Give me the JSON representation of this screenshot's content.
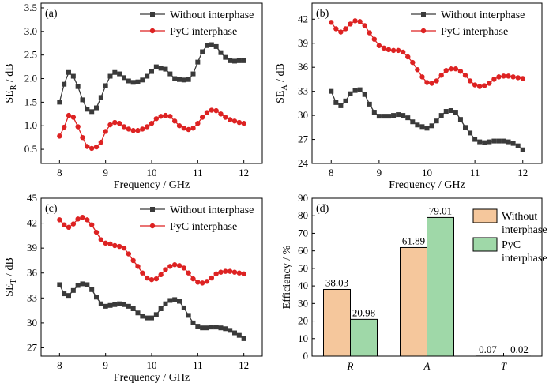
{
  "colors": {
    "without": "#3a3a3a",
    "pyc": "#dd2222",
    "bar_without": "#f5c79c",
    "bar_pyc": "#9fd8a8"
  },
  "chart_data": [
    {
      "panel": "(a)",
      "type": "line",
      "xlabel": "Frequency / GHz",
      "ylabel": "SE",
      "ylabel_sub": "R",
      "ylabel_unit": " / dB",
      "xlim": [
        7.6,
        12.4
      ],
      "ylim": [
        0.2,
        3.6
      ],
      "xticks": [
        8,
        9,
        10,
        11,
        12
      ],
      "yticks": [
        0.5,
        1.0,
        1.5,
        2.0,
        2.5,
        3.0,
        3.5
      ],
      "ytick_decimals": 1,
      "legend_position": "top-right",
      "x": [
        8.0,
        8.1,
        8.2,
        8.3,
        8.4,
        8.5,
        8.6,
        8.7,
        8.8,
        8.9,
        9.0,
        9.1,
        9.2,
        9.3,
        9.4,
        9.5,
        9.6,
        9.7,
        9.8,
        9.9,
        10.0,
        10.1,
        10.2,
        10.3,
        10.4,
        10.5,
        10.6,
        10.7,
        10.8,
        10.9,
        11.0,
        11.1,
        11.2,
        11.3,
        11.4,
        11.5,
        11.6,
        11.7,
        11.8,
        11.9,
        12.0
      ],
      "series": [
        {
          "name": "Without interphase",
          "marker": "square",
          "color_key": "without",
          "values": [
            1.5,
            1.88,
            2.13,
            2.05,
            1.83,
            1.55,
            1.35,
            1.3,
            1.38,
            1.6,
            1.85,
            2.05,
            2.13,
            2.1,
            2.02,
            1.95,
            1.92,
            1.93,
            1.97,
            2.05,
            2.15,
            2.25,
            2.22,
            2.2,
            2.1,
            2.0,
            1.98,
            1.97,
            1.98,
            2.1,
            2.35,
            2.57,
            2.7,
            2.72,
            2.68,
            2.55,
            2.45,
            2.38,
            2.37,
            2.38,
            2.38
          ]
        },
        {
          "name": "PyC interphase",
          "marker": "circle",
          "color_key": "pyc",
          "values": [
            0.78,
            0.97,
            1.22,
            1.18,
            0.98,
            0.75,
            0.56,
            0.52,
            0.55,
            0.65,
            0.88,
            1.02,
            1.07,
            1.05,
            0.98,
            0.93,
            0.9,
            0.9,
            0.93,
            0.98,
            1.05,
            1.15,
            1.2,
            1.22,
            1.2,
            1.1,
            1.0,
            0.95,
            0.92,
            0.95,
            1.05,
            1.18,
            1.28,
            1.33,
            1.32,
            1.25,
            1.18,
            1.13,
            1.1,
            1.07,
            1.05
          ]
        }
      ]
    },
    {
      "panel": "(b)",
      "type": "line",
      "xlabel": "Frequency / GHz",
      "ylabel": "SE",
      "ylabel_sub": "A",
      "ylabel_unit": " / dB",
      "xlim": [
        7.6,
        12.4
      ],
      "ylim": [
        24,
        44
      ],
      "xticks": [
        8,
        9,
        10,
        11,
        12
      ],
      "yticks": [
        24,
        27,
        30,
        33,
        36,
        39,
        42
      ],
      "ytick_decimals": 0,
      "legend_position": "top-right",
      "x": [
        8.0,
        8.1,
        8.2,
        8.3,
        8.4,
        8.5,
        8.6,
        8.7,
        8.8,
        8.9,
        9.0,
        9.1,
        9.2,
        9.3,
        9.4,
        9.5,
        9.6,
        9.7,
        9.8,
        9.9,
        10.0,
        10.1,
        10.2,
        10.3,
        10.4,
        10.5,
        10.6,
        10.7,
        10.8,
        10.9,
        11.0,
        11.1,
        11.2,
        11.3,
        11.4,
        11.5,
        11.6,
        11.7,
        11.8,
        11.9,
        12.0
      ],
      "series": [
        {
          "name": "Without interphase",
          "marker": "square",
          "color_key": "without",
          "values": [
            33.0,
            31.6,
            31.2,
            31.8,
            32.7,
            33.1,
            33.2,
            32.6,
            31.4,
            30.4,
            29.9,
            29.9,
            29.9,
            30.0,
            30.1,
            30.0,
            29.7,
            29.2,
            28.8,
            28.6,
            28.4,
            28.7,
            29.3,
            30.0,
            30.5,
            30.6,
            30.4,
            29.5,
            28.5,
            27.8,
            27.0,
            26.7,
            26.6,
            26.7,
            26.8,
            26.8,
            26.8,
            26.7,
            26.5,
            26.2,
            25.7
          ]
        },
        {
          "name": "PyC interphase",
          "marker": "circle",
          "color_key": "pyc",
          "values": [
            41.6,
            40.8,
            40.4,
            40.8,
            41.4,
            41.8,
            41.7,
            41.2,
            40.3,
            39.5,
            38.7,
            38.4,
            38.2,
            38.1,
            38.1,
            37.9,
            37.3,
            36.6,
            35.7,
            34.8,
            34.1,
            34.0,
            34.3,
            35.0,
            35.6,
            35.8,
            35.8,
            35.5,
            35.0,
            34.3,
            33.8,
            33.6,
            33.7,
            34.0,
            34.5,
            34.8,
            34.9,
            34.9,
            34.8,
            34.7,
            34.6
          ]
        }
      ]
    },
    {
      "panel": "(c)",
      "type": "line",
      "xlabel": "Frequency / GHz",
      "ylabel": "SE",
      "ylabel_sub": "T",
      "ylabel_unit": " / dB",
      "xlim": [
        7.6,
        12.4
      ],
      "ylim": [
        26,
        45
      ],
      "xticks": [
        8,
        9,
        10,
        11,
        12
      ],
      "yticks": [
        27,
        30,
        33,
        36,
        39,
        42,
        45
      ],
      "ytick_decimals": 0,
      "legend_position": "top-right",
      "x": [
        8.0,
        8.1,
        8.2,
        8.3,
        8.4,
        8.5,
        8.6,
        8.7,
        8.8,
        8.9,
        9.0,
        9.1,
        9.2,
        9.3,
        9.4,
        9.5,
        9.6,
        9.7,
        9.8,
        9.9,
        10.0,
        10.1,
        10.2,
        10.3,
        10.4,
        10.5,
        10.6,
        10.7,
        10.8,
        10.9,
        11.0,
        11.1,
        11.2,
        11.3,
        11.4,
        11.5,
        11.6,
        11.7,
        11.8,
        11.9,
        12.0
      ],
      "series": [
        {
          "name": "Without interphase",
          "marker": "square",
          "color_key": "without",
          "values": [
            34.6,
            33.5,
            33.3,
            33.9,
            34.5,
            34.7,
            34.6,
            34.0,
            33.1,
            32.3,
            32.0,
            32.1,
            32.2,
            32.3,
            32.2,
            32.0,
            31.7,
            31.2,
            30.8,
            30.6,
            30.6,
            31.0,
            31.7,
            32.3,
            32.7,
            32.8,
            32.6,
            31.8,
            30.9,
            30.0,
            29.6,
            29.4,
            29.4,
            29.5,
            29.5,
            29.4,
            29.3,
            29.1,
            28.8,
            28.5,
            28.1
          ]
        },
        {
          "name": "PyC interphase",
          "marker": "circle",
          "color_key": "pyc",
          "values": [
            42.4,
            41.8,
            41.5,
            41.9,
            42.5,
            42.7,
            42.4,
            41.8,
            40.9,
            40.0,
            39.6,
            39.5,
            39.3,
            39.2,
            39.0,
            38.3,
            37.5,
            36.8,
            36.0,
            35.4,
            35.2,
            35.3,
            35.8,
            36.4,
            36.8,
            37.0,
            36.9,
            36.6,
            36.0,
            35.3,
            34.9,
            34.8,
            35.0,
            35.4,
            35.9,
            36.1,
            36.2,
            36.2,
            36.1,
            36.0,
            35.9
          ]
        }
      ]
    },
    {
      "panel": "(d)",
      "type": "bar",
      "ylabel": "Efficiency / %",
      "ylim": [
        0,
        90
      ],
      "yticks": [
        0,
        10,
        20,
        30,
        40,
        50,
        60,
        70,
        80,
        90
      ],
      "ytick_decimals": 0,
      "categories": [
        "R",
        "A",
        "T"
      ],
      "legend_position": "top-right",
      "series": [
        {
          "name": "Without interphase",
          "name_lines": [
            "Without",
            "interphase"
          ],
          "color_key": "bar_without",
          "values": [
            38.03,
            61.89,
            0.07
          ],
          "labels": [
            "38.03",
            "61.89",
            "0.07"
          ]
        },
        {
          "name": "PyC interphase",
          "name_lines": [
            "PyC",
            "interphase"
          ],
          "color_key": "bar_pyc",
          "values": [
            20.98,
            79.01,
            0.02
          ],
          "labels": [
            "20.98",
            "79.01",
            "0.02"
          ]
        }
      ]
    }
  ]
}
